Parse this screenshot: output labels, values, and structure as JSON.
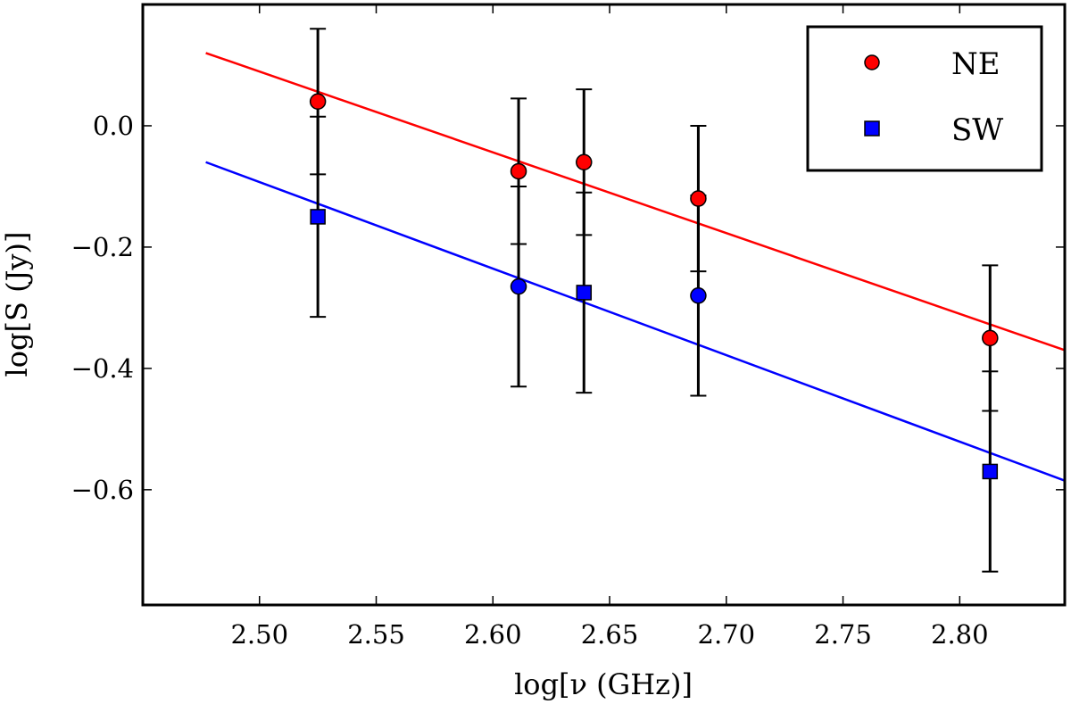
{
  "chart_data": {
    "type": "scatter",
    "title": "",
    "xlabel": "log[ν (GHz)]",
    "ylabel": "log[S (Jy)]",
    "xlim": [
      2.45,
      2.845
    ],
    "ylim": [
      -0.79,
      0.2
    ],
    "xticks": [
      2.5,
      2.55,
      2.6,
      2.65,
      2.7,
      2.75,
      2.8
    ],
    "xtick_labels": [
      "2.50",
      "2.55",
      "2.60",
      "2.65",
      "2.70",
      "2.75",
      "2.80"
    ],
    "yticks": [
      0.0,
      -0.2,
      -0.4,
      -0.6
    ],
    "ytick_labels": [
      "0.0",
      "−0.2",
      "−0.4",
      "−0.6"
    ],
    "grid": false,
    "legend": {
      "position": "top-right"
    },
    "series": [
      {
        "name": "NE",
        "marker": "circle",
        "color": "#ff0000",
        "points": [
          {
            "x": 2.525,
            "y": 0.04,
            "err": 0.12
          },
          {
            "x": 2.611,
            "y": -0.075,
            "err": 0.12
          },
          {
            "x": 2.639,
            "y": -0.06,
            "err": 0.12
          },
          {
            "x": 2.688,
            "y": -0.12,
            "err": 0.12
          },
          {
            "x": 2.813,
            "y": -0.35,
            "err": 0.12
          }
        ],
        "fit": {
          "x": [
            2.477,
            2.845
          ],
          "y": [
            0.12,
            -0.37
          ]
        }
      },
      {
        "name": "SW",
        "marker": "square",
        "color": "#0000ff",
        "points": [
          {
            "x": 2.525,
            "y": -0.15,
            "err": 0.165,
            "marker": "square"
          },
          {
            "x": 2.611,
            "y": -0.265,
            "err": 0.165,
            "marker": "circle"
          },
          {
            "x": 2.639,
            "y": -0.275,
            "err": 0.165,
            "marker": "square"
          },
          {
            "x": 2.688,
            "y": -0.28,
            "err": 0.165,
            "marker": "circle"
          },
          {
            "x": 2.813,
            "y": -0.57,
            "err": 0.165,
            "marker": "square"
          }
        ],
        "fit": {
          "x": [
            2.477,
            2.845
          ],
          "y": [
            -0.06,
            -0.585
          ]
        }
      }
    ]
  }
}
